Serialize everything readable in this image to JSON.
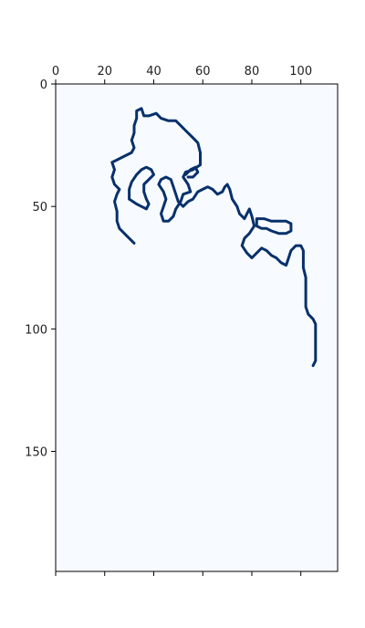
{
  "chart_data": {
    "type": "heatmap",
    "title": "",
    "xlabel": "",
    "ylabel": "",
    "xlim": [
      0,
      115
    ],
    "ylim": [
      199,
      0
    ],
    "x_ticks": [
      0,
      20,
      40,
      60,
      80,
      100
    ],
    "y_ticks": [
      0,
      50,
      100,
      150
    ],
    "x_tick_labels": [
      "0",
      "20",
      "40",
      "60",
      "80",
      "100"
    ],
    "y_tick_labels": [
      "0",
      "50",
      "100",
      "150"
    ],
    "x_tick_position": "top",
    "grid": false,
    "legend": "none",
    "colormap": "Blues",
    "background_value_color": "#f7fbff",
    "stroke_value_color": "#08306b",
    "contours": [
      {
        "name": "",
        "points": [
          [
            32,
            65
          ],
          [
            30,
            63
          ],
          [
            28,
            61
          ],
          [
            26,
            59
          ],
          [
            25,
            56
          ],
          [
            25,
            52
          ],
          [
            24,
            48
          ],
          [
            25,
            45
          ],
          [
            26,
            43
          ],
          [
            24,
            41
          ],
          [
            23,
            38
          ],
          [
            24,
            35
          ],
          [
            23,
            32
          ],
          [
            27,
            30
          ],
          [
            31,
            28
          ],
          [
            32,
            26
          ],
          [
            31,
            23
          ],
          [
            32,
            20
          ],
          [
            32,
            17
          ],
          [
            33,
            14
          ],
          [
            33,
            11
          ],
          [
            35,
            10
          ],
          [
            36,
            13
          ],
          [
            38,
            13
          ],
          [
            41,
            12
          ],
          [
            43,
            14
          ],
          [
            46,
            15
          ],
          [
            49,
            15
          ],
          [
            51,
            17
          ],
          [
            53,
            19
          ],
          [
            56,
            22
          ],
          [
            58,
            24
          ],
          [
            59,
            28
          ],
          [
            59,
            33
          ],
          [
            56,
            35
          ],
          [
            53,
            36
          ],
          [
            52,
            38
          ],
          [
            54,
            41
          ],
          [
            55,
            44
          ],
          [
            52,
            45
          ],
          [
            51,
            48
          ],
          [
            49,
            51
          ],
          [
            48,
            54
          ],
          [
            46,
            56
          ],
          [
            44,
            56
          ],
          [
            43,
            53
          ],
          [
            44,
            50
          ],
          [
            45,
            47
          ],
          [
            44,
            44
          ],
          [
            42,
            41
          ],
          [
            43,
            39
          ],
          [
            45,
            38
          ],
          [
            47,
            39
          ],
          [
            48,
            42
          ],
          [
            49,
            45
          ],
          [
            50,
            48
          ],
          [
            52,
            50
          ],
          [
            54,
            48
          ],
          [
            56,
            47
          ],
          [
            58,
            44
          ],
          [
            60,
            43
          ],
          [
            62,
            42
          ],
          [
            64,
            43
          ],
          [
            66,
            45
          ],
          [
            68,
            44
          ],
          [
            69,
            42
          ],
          [
            70,
            41
          ],
          [
            71,
            43
          ],
          [
            72,
            47
          ],
          [
            74,
            50
          ],
          [
            75,
            53
          ],
          [
            77,
            55
          ],
          [
            78,
            53
          ],
          [
            79,
            51
          ],
          [
            80,
            54
          ],
          [
            81,
            58
          ],
          [
            79,
            61
          ],
          [
            77,
            63
          ],
          [
            76,
            66
          ],
          [
            78,
            69
          ],
          [
            80,
            71
          ],
          [
            82,
            69
          ],
          [
            84,
            67
          ],
          [
            86,
            68
          ],
          [
            88,
            70
          ],
          [
            90,
            71
          ],
          [
            92,
            73
          ],
          [
            94,
            74
          ],
          [
            95,
            71
          ],
          [
            96,
            68
          ],
          [
            98,
            66
          ],
          [
            100,
            66
          ],
          [
            101,
            68
          ],
          [
            101,
            71
          ],
          [
            101,
            75
          ],
          [
            102,
            79
          ],
          [
            102,
            83
          ],
          [
            102,
            87
          ],
          [
            102,
            91
          ],
          [
            103,
            94
          ],
          [
            105,
            96
          ],
          [
            106,
            98
          ],
          [
            106,
            101
          ],
          [
            106,
            104
          ],
          [
            106,
            107
          ],
          [
            106,
            110
          ],
          [
            106,
            113
          ],
          [
            105,
            115
          ]
        ]
      },
      {
        "name": "",
        "points": [
          [
            30,
            47
          ],
          [
            30,
            43
          ],
          [
            31,
            40
          ],
          [
            33,
            37
          ],
          [
            35,
            35
          ],
          [
            37,
            34
          ],
          [
            39,
            35
          ],
          [
            40,
            37
          ],
          [
            38,
            39
          ],
          [
            36,
            41
          ],
          [
            36,
            44
          ],
          [
            37,
            47
          ],
          [
            38,
            49
          ],
          [
            37,
            51
          ],
          [
            35,
            50
          ],
          [
            33,
            49
          ],
          [
            30,
            47
          ]
        ]
      },
      {
        "name": "",
        "points": [
          [
            82,
            55
          ],
          [
            85,
            55
          ],
          [
            88,
            56
          ],
          [
            91,
            56
          ],
          [
            94,
            56
          ],
          [
            96,
            57
          ],
          [
            96,
            60
          ],
          [
            94,
            61
          ],
          [
            91,
            61
          ],
          [
            88,
            60
          ],
          [
            86,
            59
          ],
          [
            84,
            59
          ],
          [
            82,
            58
          ],
          [
            82,
            55
          ]
        ]
      },
      {
        "name": "",
        "points": [
          [
            53,
            37
          ],
          [
            55,
            35
          ],
          [
            57,
            34
          ],
          [
            58,
            36
          ],
          [
            56,
            38
          ],
          [
            54,
            38
          ]
        ]
      }
    ]
  }
}
